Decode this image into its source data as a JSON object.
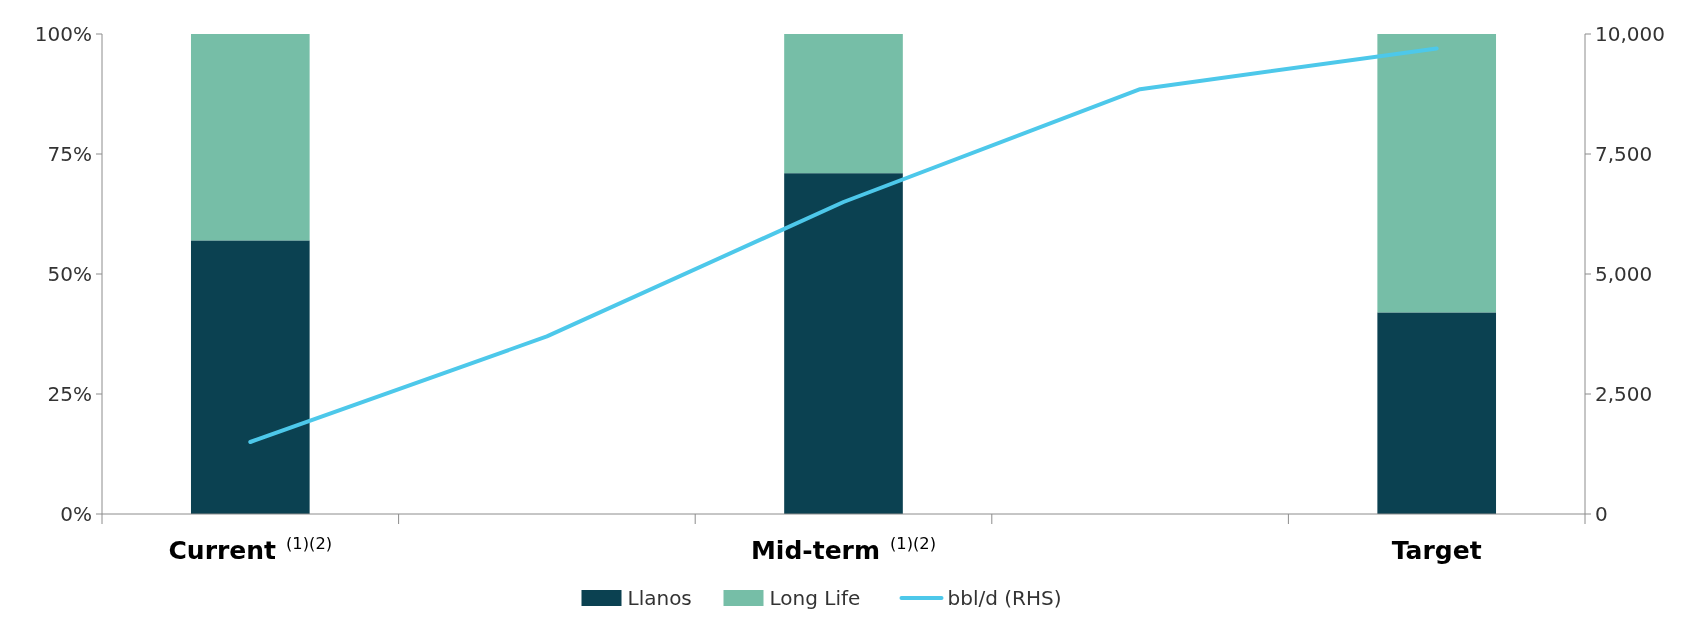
{
  "chart_data": {
    "type": "bar",
    "stacked": true,
    "categories": [
      "Current$^{(1)(2)}$",
      null,
      "Mid-term$^{(1)(2)}$",
      null,
      "Target"
    ],
    "series": [
      {
        "name": "Llanos",
        "color": "#0b4151",
        "values": [
          57,
          null,
          71,
          null,
          42
        ]
      },
      {
        "name": "Long Life",
        "color": "#76bea7",
        "values": [
          43,
          null,
          29,
          null,
          58
        ]
      },
      {
        "name": "bbl/d (RHS)",
        "type": "line",
        "axis": "y2",
        "color": "#4dc8ea",
        "values": [
          1500,
          3700,
          6500,
          8850,
          9700
        ]
      }
    ],
    "ylim": [
      0,
      100
    ],
    "yticks": [
      {
        "value": 0,
        "label": "0%"
      },
      {
        "value": 25,
        "label": "25%"
      },
      {
        "value": 50,
        "label": "50%"
      },
      {
        "value": 75,
        "label": "75%"
      },
      {
        "value": 100,
        "label": "100%"
      }
    ],
    "y2lim": [
      0,
      10000
    ],
    "y2ticks": [
      {
        "value": 0,
        "label": "0"
      },
      {
        "value": 2500,
        "label": "2,500"
      },
      {
        "value": 5000,
        "label": "5,000"
      },
      {
        "value": 7500,
        "label": "7,500"
      },
      {
        "value": 10000,
        "label": "10,000"
      }
    ],
    "legend": "bottom",
    "grid": false
  }
}
